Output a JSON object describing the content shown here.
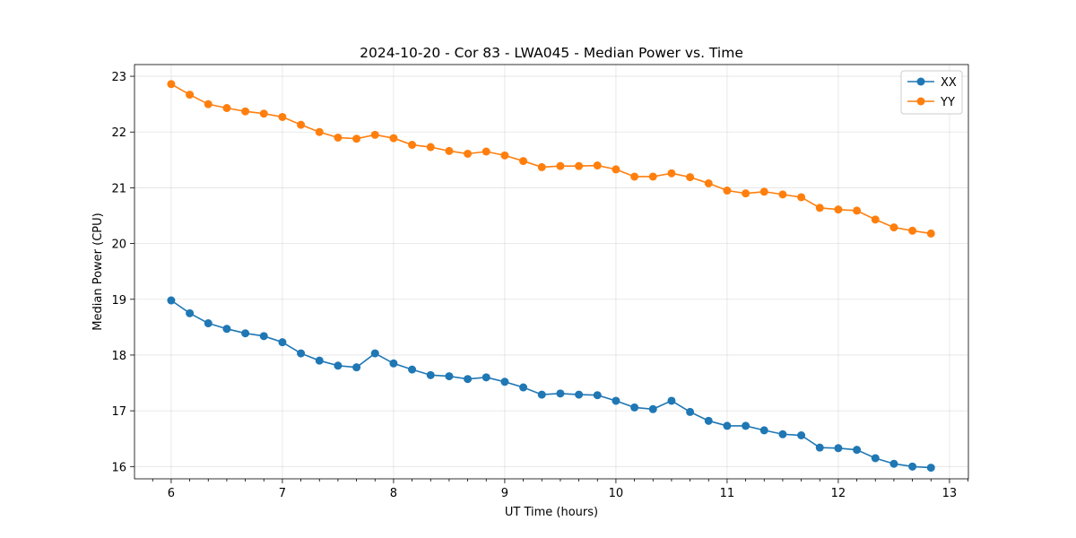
{
  "chart_data": {
    "type": "line",
    "title": "2024-10-20 - Cor 83 - LWA045 - Median Power vs. Time",
    "xlabel": "UT Time (hours)",
    "ylabel": "Median Power (CPU)",
    "xlim": [
      5.67,
      13.17
    ],
    "ylim": [
      15.78,
      23.21
    ],
    "grid": true,
    "legend_position": "top-right",
    "xticks": [
      6,
      7,
      8,
      9,
      10,
      11,
      12,
      13
    ],
    "yticks": [
      16,
      17,
      18,
      19,
      20,
      21,
      22,
      23
    ],
    "x": [
      6.0,
      6.1667,
      6.3333,
      6.5,
      6.6667,
      6.8333,
      7.0,
      7.1667,
      7.3333,
      7.5,
      7.6667,
      7.8333,
      8.0,
      8.1667,
      8.3333,
      8.5,
      8.6667,
      8.8333,
      9.0,
      9.1667,
      9.3333,
      9.5,
      9.6667,
      9.8333,
      10.0,
      10.1667,
      10.3333,
      10.5,
      10.6667,
      10.8333,
      11.0,
      11.1667,
      11.3333,
      11.5,
      11.6667,
      11.8333,
      12.0,
      12.1667,
      12.3333,
      12.5,
      12.6667,
      12.8333
    ],
    "series": [
      {
        "name": "XX",
        "color": "#1f77b4",
        "values": [
          18.98,
          18.75,
          18.57,
          18.47,
          18.39,
          18.34,
          18.23,
          18.03,
          17.9,
          17.81,
          17.78,
          18.03,
          17.85,
          17.74,
          17.64,
          17.62,
          17.57,
          17.6,
          17.52,
          17.42,
          17.29,
          17.31,
          17.29,
          17.28,
          17.18,
          17.06,
          17.03,
          17.18,
          16.98,
          16.82,
          16.73,
          16.73,
          16.65,
          16.58,
          16.56,
          16.34,
          16.33,
          16.3,
          16.15,
          16.05,
          16.0,
          15.98
        ]
      },
      {
        "name": "YY",
        "color": "#ff7f0e",
        "values": [
          22.86,
          22.67,
          22.5,
          22.43,
          22.37,
          22.33,
          22.27,
          22.13,
          22.0,
          21.9,
          21.88,
          21.95,
          21.89,
          21.77,
          21.73,
          21.66,
          21.61,
          21.65,
          21.58,
          21.48,
          21.37,
          21.39,
          21.39,
          21.4,
          21.33,
          21.2,
          21.2,
          21.26,
          21.19,
          21.08,
          20.95,
          20.9,
          20.93,
          20.88,
          20.83,
          20.64,
          20.61,
          20.59,
          20.43,
          20.29,
          20.23,
          20.18
        ]
      }
    ]
  }
}
